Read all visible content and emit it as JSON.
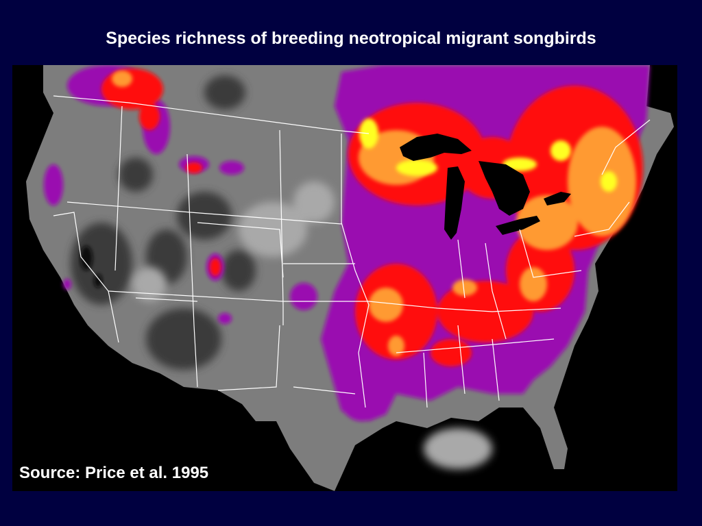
{
  "title": "Species richness of breeding neotropical migrant songbirds",
  "source": "Source: Price et al. 1995",
  "colors": {
    "slide_background": "#000040",
    "map_background": "#000000",
    "water": "#000000",
    "land_low": "#3a3a3a",
    "land_mid": "#7d7d7d",
    "land_high": "#a9a9a9",
    "richness_purple": "#9a07b0",
    "richness_red": "#ff1010",
    "richness_orange": "#ff9a30",
    "richness_yellow": "#ffff20",
    "border_lines": "#ffffff"
  }
}
